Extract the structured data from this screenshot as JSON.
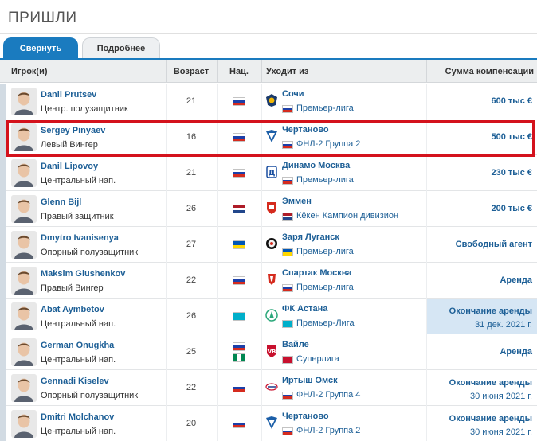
{
  "section_title": "ПРИШЛИ",
  "tabs": {
    "active_label": "Свернуть",
    "inactive_label": "Подробнее"
  },
  "columns": {
    "player": "Игрок(и)",
    "age": "Возраст",
    "nat": "Нац.",
    "from": "Уходит из",
    "fee": "Сумма компенсации"
  },
  "colors": {
    "accent": "#1a7bbf",
    "link": "#1d5f96",
    "highlight_border": "#d4121c",
    "loan_end_bg": "#d6e6f4"
  },
  "rows": [
    {
      "name": "Danil Prutsev",
      "position": "Центр. полузащитник",
      "age": "21",
      "flags": [
        "russia"
      ],
      "club": "Сочи",
      "club_icon": "sochi-logo-icon",
      "league_flag": "russia",
      "league": "Премьер-лига",
      "fee": "600 тыс €",
      "fee_line2": ""
    },
    {
      "name": "Sergey Pinyaev",
      "position": "Левый Вингер",
      "age": "16",
      "flags": [
        "russia"
      ],
      "club": "Чертаново",
      "club_icon": "chertanovo-logo-icon",
      "league_flag": "russia",
      "league": "ФНЛ-2 Группа 2",
      "fee": "500 тыс €",
      "fee_line2": ""
    },
    {
      "name": "Danil Lipovoy",
      "position": "Центральный нап.",
      "age": "21",
      "flags": [
        "russia"
      ],
      "club": "Динамо Москва",
      "club_icon": "dynamo-logo-icon",
      "league_flag": "russia",
      "league": "Премьер-лига",
      "fee": "230 тыс €",
      "fee_line2": ""
    },
    {
      "name": "Glenn Bijl",
      "position": "Правый защитник",
      "age": "26",
      "flags": [
        "netherlands"
      ],
      "club": "Эммен",
      "club_icon": "emmen-logo-icon",
      "league_flag": "netherlands",
      "league": "Кёкен Кампион дивизион",
      "fee": "200 тыс €",
      "fee_line2": ""
    },
    {
      "name": "Dmytro Ivanisenya",
      "position": "Опорный полузащитник",
      "age": "27",
      "flags": [
        "ukraine"
      ],
      "club": "Заря Луганск",
      "club_icon": "zorya-logo-icon",
      "league_flag": "ukraine",
      "league": "Премьер-лига",
      "fee": "Свободный агент",
      "fee_line2": ""
    },
    {
      "name": "Maksim Glushenkov",
      "position": "Правый Вингер",
      "age": "22",
      "flags": [
        "russia"
      ],
      "club": "Спартак Москва",
      "club_icon": "spartak-logo-icon",
      "league_flag": "russia",
      "league": "Премьер-лига",
      "fee": "Аренда",
      "fee_line2": ""
    },
    {
      "name": "Abat Aymbetov",
      "position": "Центральный нап.",
      "age": "26",
      "flags": [
        "kazakhstan"
      ],
      "club": "ФК Астана",
      "club_icon": "astana-logo-icon",
      "league_flag": "kazakhstan",
      "league": "Премьер-Лига",
      "fee": "Окончание аренды",
      "fee_line2": "31 дек. 2021 г."
    },
    {
      "name": "German Onugkha",
      "position": "Центральный нап.",
      "age": "25",
      "flags": [
        "russia",
        "nigeria"
      ],
      "club": "Вайле",
      "club_icon": "vejle-logo-icon",
      "league_flag": "denmark",
      "league": "Суперлига",
      "fee": "Аренда",
      "fee_line2": ""
    },
    {
      "name": "Gennadi Kiselev",
      "position": "Опорный полузащитник",
      "age": "22",
      "flags": [
        "russia"
      ],
      "club": "Иртыш Омск",
      "club_icon": "irtysh-logo-icon",
      "league_flag": "russia",
      "league": "ФНЛ-2 Группа 4",
      "fee": "Окончание аренды",
      "fee_line2": "30 июня 2021 г."
    },
    {
      "name": "Dmitri Molchanov",
      "position": "Центральный нап.",
      "age": "20",
      "flags": [
        "russia"
      ],
      "club": "Чертаново",
      "club_icon": "chertanovo-logo-icon",
      "league_flag": "russia",
      "league": "ФНЛ-2 Группа 2",
      "fee": "Окончание аренды",
      "fee_line2": "30 июня 2021 г."
    }
  ]
}
